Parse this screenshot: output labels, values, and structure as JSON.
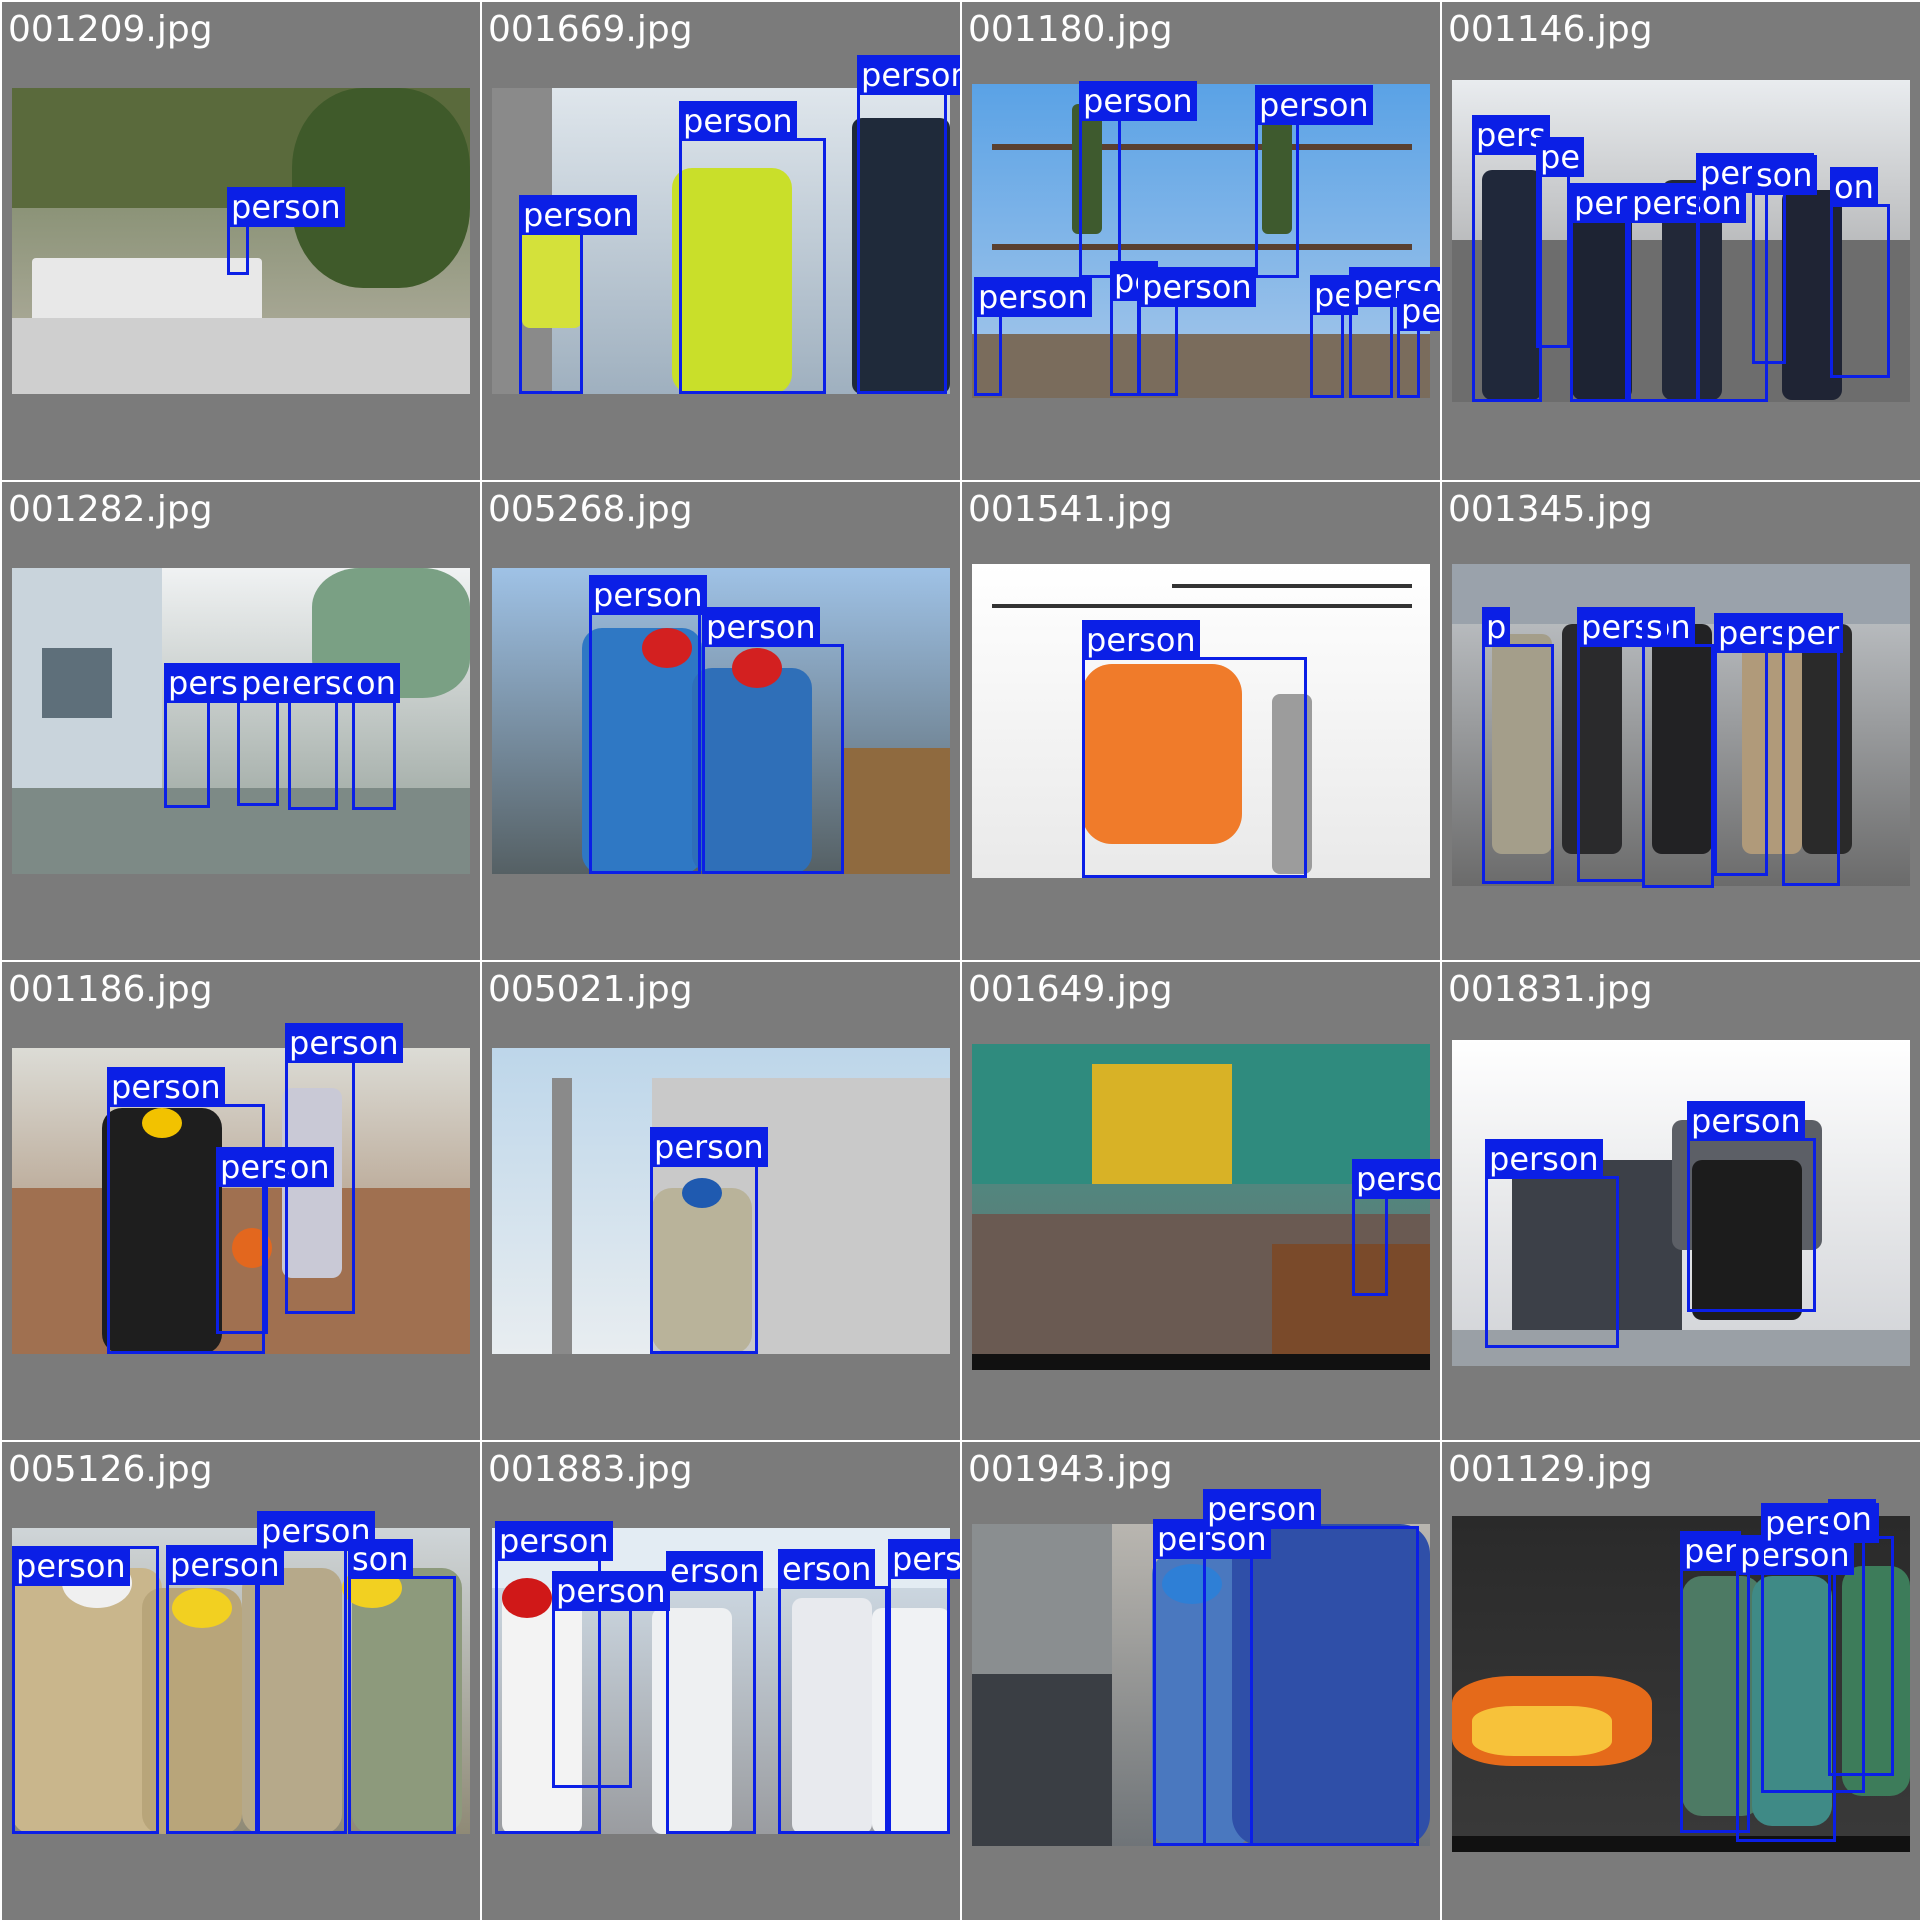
{
  "colors": {
    "tile_background": "#7b7b7b",
    "box_color": "#0b1fe6",
    "label_text": "#ffffff"
  },
  "tiles": [
    {
      "name": "001209.jpg",
      "labels": [
        "person"
      ]
    },
    {
      "name": "001669.jpg",
      "labels": [
        "person",
        "person",
        "person"
      ]
    },
    {
      "name": "001180.jpg",
      "labels": [
        "person",
        "person",
        "person",
        "pe",
        "person",
        "pe",
        "person",
        "person"
      ]
    },
    {
      "name": "001146.jpg",
      "labels": [
        "pers",
        "pe",
        "person",
        "person",
        "person",
        "son",
        "on"
      ]
    },
    {
      "name": "001282.jpg",
      "labels": [
        "person",
        "person",
        "erson",
        "on"
      ]
    },
    {
      "name": "005268.jpg",
      "labels": [
        "person",
        "person"
      ]
    },
    {
      "name": "001541.jpg",
      "labels": [
        "person"
      ]
    },
    {
      "name": "001345.jpg",
      "labels": [
        "p",
        "person",
        "s",
        "pers",
        "per",
        "person"
      ]
    },
    {
      "name": "001186.jpg",
      "labels": [
        "person",
        "person",
        "person"
      ]
    },
    {
      "name": "005021.jpg",
      "labels": [
        "person"
      ]
    },
    {
      "name": "001649.jpg",
      "labels": [
        "person"
      ]
    },
    {
      "name": "001831.jpg",
      "labels": [
        "person",
        "person"
      ]
    },
    {
      "name": "005126.jpg",
      "labels": [
        "person",
        "person",
        "person",
        "son"
      ]
    },
    {
      "name": "001883.jpg",
      "labels": [
        "person",
        "person",
        "erson",
        "erson",
        "person"
      ]
    },
    {
      "name": "001943.jpg",
      "labels": [
        "person",
        "person"
      ]
    },
    {
      "name": "001129.jpg",
      "labels": [
        "per",
        "person",
        "person",
        "on"
      ]
    }
  ]
}
